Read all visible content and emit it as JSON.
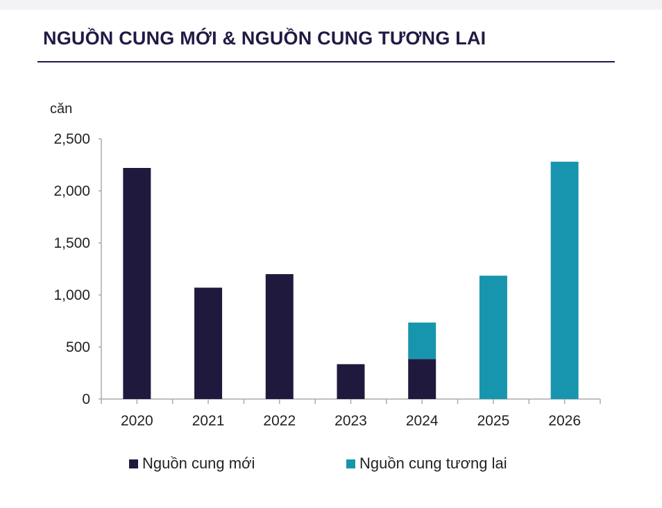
{
  "title": "NGUỒN CUNG MỚI & NGUỒN CUNG TƯƠNG LAI",
  "chart_data": {
    "type": "bar",
    "stacked": true,
    "ylabel": "căn",
    "ylim": [
      0,
      2500
    ],
    "yticks": [
      0,
      500,
      1000,
      1500,
      2000,
      2500
    ],
    "ytick_labels": [
      "0",
      "500",
      "1,000",
      "1,500",
      "2,000",
      "2,500"
    ],
    "categories": [
      "2020",
      "2021",
      "2022",
      "2023",
      "2024",
      "2025",
      "2026"
    ],
    "series": [
      {
        "name": "Nguồn cung mới",
        "color": "#1f1a3d",
        "values": [
          2220,
          1070,
          1200,
          335,
          385,
          0,
          0
        ]
      },
      {
        "name": "Nguồn cung tương lai",
        "color": "#1895ae",
        "values": [
          0,
          0,
          0,
          0,
          350,
          1185,
          2280
        ]
      }
    ],
    "grid": false,
    "legend": "bottom"
  }
}
